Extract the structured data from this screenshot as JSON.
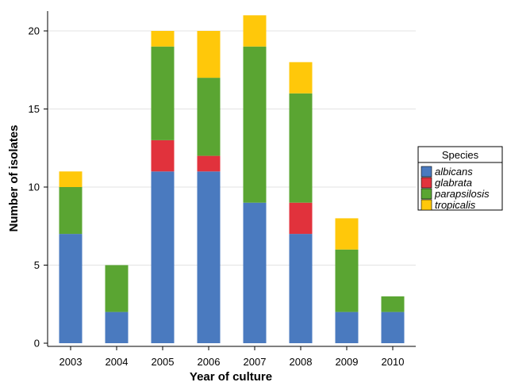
{
  "chart_data": {
    "type": "bar",
    "stacked": true,
    "xlabel": "Year of culture",
    "ylabel": "Number of isolates",
    "categories": [
      "2003",
      "2004",
      "2005",
      "2006",
      "2007",
      "2008",
      "2009",
      "2010"
    ],
    "ylim": [
      0,
      21
    ],
    "yticks": [
      0,
      5,
      10,
      15,
      20
    ],
    "grid": "horizontal",
    "legend": {
      "title": "Species",
      "position": "right"
    },
    "series": [
      {
        "name": "albicans",
        "color": "#4a7abf",
        "values": [
          7,
          2,
          11,
          11,
          9,
          7,
          2,
          2
        ]
      },
      {
        "name": "glabrata",
        "color": "#e1323c",
        "values": [
          0,
          0,
          2,
          1,
          0,
          2,
          0,
          0
        ]
      },
      {
        "name": "parapsilosis",
        "color": "#5aa532",
        "values": [
          3,
          3,
          6,
          5,
          10,
          7,
          4,
          1
        ]
      },
      {
        "name": "tropicalis",
        "color": "#ffc80a",
        "values": [
          1,
          0,
          1,
          3,
          2,
          2,
          2,
          0
        ]
      }
    ]
  }
}
